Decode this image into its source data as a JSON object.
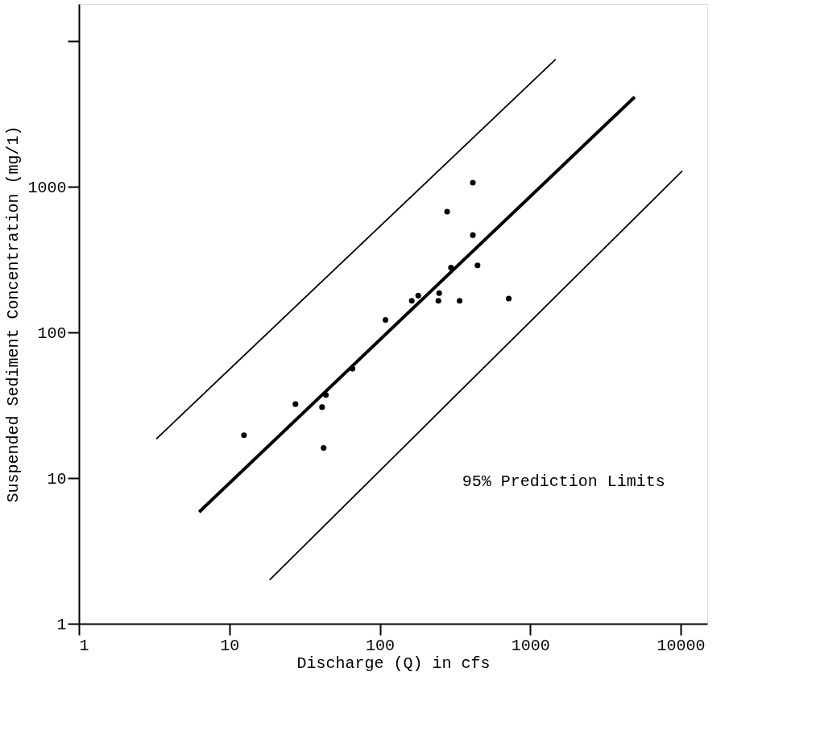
{
  "chart_data": {
    "type": "scatter",
    "xlabel": "Discharge (Q) in cfs",
    "ylabel": "Suspended Sediment Concentration (mg/1)",
    "log": "xy",
    "xlim": [
      1,
      15000
    ],
    "ylim": [
      1,
      18000
    ],
    "xticks": [
      1,
      10,
      100,
      1000,
      10000
    ],
    "yticks": [
      1,
      10,
      100,
      1000,
      {
        "value": 10000,
        "label": null
      }
    ],
    "grid": false,
    "annotations": [
      "95% Prediction Limits"
    ],
    "series": [
      {
        "color": "#000000",
        "marker": "circle",
        "x": [
          12.5,
          27.5,
          41.3,
          43.8,
          42.3,
          65.8,
          109,
          163,
          180,
          245,
          248,
          297,
          280,
          415,
          415,
          339,
          719,
          446
        ],
        "values": [
          19.7,
          32.2,
          30.7,
          37.2,
          16.1,
          56.4,
          122,
          165,
          179,
          165,
          186,
          279,
          675,
          466,
          1068,
          165,
          171,
          289
        ]
      },
      {
        "type": "line",
        "color": "#000000",
        "marker": "none",
        "line_style": "solid",
        "x": [
          6.3,
          4940
        ],
        "values": [
          5.85,
          4140
        ]
      },
      {
        "type": "line",
        "color": "#000000",
        "marker": "none",
        "line_style": "solid",
        "x": [
          3.27,
          1475
        ],
        "values": [
          18.6,
          7510
        ]
      },
      {
        "type": "line",
        "color": "#000000",
        "marker": "none",
        "line_style": "solid",
        "x": [
          18.5,
          10240
        ],
        "values": [
          2.0,
          1285
        ]
      }
    ]
  }
}
